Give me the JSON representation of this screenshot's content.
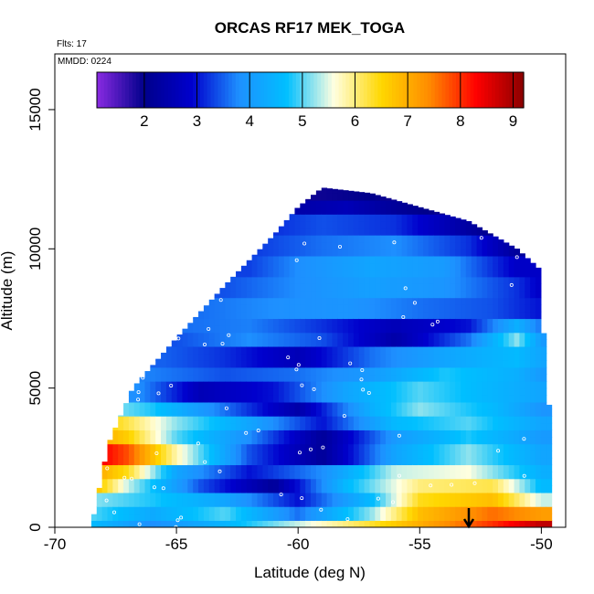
{
  "chart_data": {
    "type": "heatmap",
    "title": "ORCAS RF17 MEK_TOGA",
    "flights_label": "Flts: 17",
    "date_label": "MMDD: 0224",
    "xlabel": "Latitude (deg N)",
    "ylabel": "Altitude (m)",
    "xlim": [
      -70,
      -49
    ],
    "ylim": [
      0,
      17000
    ],
    "xticks": [
      -70,
      -65,
      -60,
      -55,
      -50
    ],
    "yticks": [
      0,
      5000,
      10000,
      15000
    ],
    "grid": false,
    "colorbar": {
      "placement": "top-inside",
      "range": [
        1.1,
        9.2
      ],
      "ticks": [
        2,
        3,
        4,
        5,
        6,
        7,
        8,
        9
      ],
      "stops": [
        "#8a2be2",
        "#00008b",
        "#0000cd",
        "#1e90ff",
        "#00bfff",
        "#ffffe0",
        "#ffd700",
        "#ff8c00",
        "#ff0000",
        "#8b0000"
      ]
    },
    "domain_envelope": {
      "latitude": [
        -68.5,
        -67.8,
        -66.8,
        -65.0,
        -63.0,
        -61.0,
        -60.0,
        -59.0,
        -57.0,
        -55.0,
        -53.0,
        -51.0,
        -50.1,
        -49.7
      ],
      "top_altitude": [
        0,
        3000,
        5000,
        6800,
        8700,
        10500,
        11500,
        12200,
        12000,
        11500,
        11000,
        10000,
        9300,
        4400
      ]
    },
    "bands": [
      {
        "alt": [
          0,
          300
        ],
        "stops": [
          [
            -68.5,
            4.6
          ],
          [
            -66,
            3.8
          ],
          [
            -63,
            4.5
          ],
          [
            -60,
            5.4
          ],
          [
            -57,
            6.3
          ],
          [
            -55,
            7.0
          ],
          [
            -52,
            8.0
          ],
          [
            -50,
            8.8
          ]
        ]
      },
      {
        "alt": [
          300,
          700
        ],
        "stops": [
          [
            -68.5,
            5.0
          ],
          [
            -66,
            4.3
          ],
          [
            -63,
            5.0
          ],
          [
            -60,
            3.6
          ],
          [
            -57,
            5.2
          ],
          [
            -55,
            6.8
          ],
          [
            -52,
            7.6
          ],
          [
            -50,
            7.2
          ]
        ]
      },
      {
        "alt": [
          700,
          1200
        ],
        "stops": [
          [
            -68.5,
            5.2
          ],
          [
            -66,
            4.8
          ],
          [
            -63,
            4.2
          ],
          [
            -60,
            3.0
          ],
          [
            -57,
            4.6
          ],
          [
            -55,
            6.4
          ],
          [
            -52,
            6.8
          ],
          [
            -50,
            5.4
          ]
        ]
      },
      {
        "alt": [
          1200,
          1700
        ],
        "stops": [
          [
            -68.5,
            7.0
          ],
          [
            -67,
            5.4
          ],
          [
            -64,
            3.4
          ],
          [
            -61,
            2.2
          ],
          [
            -58,
            4.6
          ],
          [
            -55,
            6.0
          ],
          [
            -52,
            6.2
          ],
          [
            -50,
            4.6
          ]
        ]
      },
      {
        "alt": [
          1700,
          2300
        ],
        "stops": [
          [
            -68.5,
            7.2
          ],
          [
            -67,
            6.4
          ],
          [
            -65,
            4.2
          ],
          [
            -62,
            3.0
          ],
          [
            -59,
            3.8
          ],
          [
            -56,
            5.4
          ],
          [
            -53,
            5.6
          ],
          [
            -50,
            4.4
          ]
        ]
      },
      {
        "alt": [
          2300,
          2900
        ],
        "stops": [
          [
            -68.5,
            8.6
          ],
          [
            -67,
            7.8
          ],
          [
            -65,
            5.8
          ],
          [
            -62,
            3.4
          ],
          [
            -59,
            2.2
          ],
          [
            -56,
            4.2
          ],
          [
            -53,
            5.2
          ],
          [
            -50,
            4.2
          ]
        ]
      },
      {
        "alt": [
          2900,
          3500
        ],
        "stops": [
          [
            -68.5,
            7.2
          ],
          [
            -67,
            6.6
          ],
          [
            -65,
            5.0
          ],
          [
            -62,
            3.8
          ],
          [
            -59,
            2.2
          ],
          [
            -56,
            4.0
          ],
          [
            -53,
            4.8
          ],
          [
            -50,
            4.0
          ]
        ]
      },
      {
        "alt": [
          3500,
          4100
        ],
        "stops": [
          [
            -68.5,
            6.8
          ],
          [
            -67,
            6.2
          ],
          [
            -65,
            5.2
          ],
          [
            -62,
            4.2
          ],
          [
            -59,
            3.0
          ],
          [
            -56,
            4.6
          ],
          [
            -53,
            5.0
          ],
          [
            -50,
            4.2
          ]
        ]
      },
      {
        "alt": [
          4100,
          4600
        ],
        "stops": [
          [
            -68.5,
            5.4
          ],
          [
            -66,
            4.8
          ],
          [
            -63,
            3.6
          ],
          [
            -60,
            2.4
          ],
          [
            -57,
            4.4
          ],
          [
            -55,
            5.2
          ],
          [
            -52,
            4.6
          ],
          [
            -50,
            3.9
          ]
        ]
      },
      {
        "alt": [
          4600,
          5200
        ],
        "stops": [
          [
            -66.5,
            3.8
          ],
          [
            -64,
            2.6
          ],
          [
            -61,
            3.0
          ],
          [
            -58,
            4.2
          ],
          [
            -55,
            5.0
          ],
          [
            -52,
            4.5
          ],
          [
            -50,
            4.2
          ]
        ]
      },
      {
        "alt": [
          5200,
          5800
        ],
        "stops": [
          [
            -66,
            3.7
          ],
          [
            -63,
            3.4
          ],
          [
            -60,
            3.6
          ],
          [
            -57,
            4.0
          ],
          [
            -54,
            4.8
          ],
          [
            -51,
            4.4
          ],
          [
            -50,
            4.0
          ]
        ]
      },
      {
        "alt": [
          5800,
          6400
        ],
        "stops": [
          [
            -65.5,
            3.5
          ],
          [
            -63,
            3.2
          ],
          [
            -60,
            2.6
          ],
          [
            -57,
            3.6
          ],
          [
            -54,
            4.2
          ],
          [
            -51,
            4.6
          ],
          [
            -50,
            4.2
          ]
        ]
      },
      {
        "alt": [
          6400,
          7000
        ],
        "stops": [
          [
            -65,
            3.4
          ],
          [
            -62,
            3.8
          ],
          [
            -59,
            3.4
          ],
          [
            -56,
            2.4
          ],
          [
            -53,
            3.6
          ],
          [
            -51,
            5.2
          ],
          [
            -50,
            4.0
          ]
        ]
      },
      {
        "alt": [
          7000,
          7600
        ],
        "stops": [
          [
            -64.5,
            3.6
          ],
          [
            -62,
            3.7
          ],
          [
            -59,
            3.2
          ],
          [
            -56,
            2.6
          ],
          [
            -53,
            3.0
          ],
          [
            -51,
            4.4
          ],
          [
            -50,
            3.6
          ]
        ]
      },
      {
        "alt": [
          7600,
          8300
        ],
        "stops": [
          [
            -64,
            3.6
          ],
          [
            -61,
            3.8
          ],
          [
            -58,
            3.9
          ],
          [
            -55,
            3.6
          ],
          [
            -52,
            3.4
          ],
          [
            -50,
            3.0
          ]
        ]
      },
      {
        "alt": [
          8300,
          9000
        ],
        "stops": [
          [
            -63,
            3.4
          ],
          [
            -60,
            3.8
          ],
          [
            -57,
            4.1
          ],
          [
            -54,
            3.9
          ],
          [
            -51,
            3.2
          ],
          [
            -50,
            2.8
          ]
        ]
      },
      {
        "alt": [
          9000,
          9800
        ],
        "stops": [
          [
            -62,
            3.3
          ],
          [
            -60,
            3.8
          ],
          [
            -57,
            4.2
          ],
          [
            -54,
            4.0
          ],
          [
            -51,
            2.8
          ]
        ]
      },
      {
        "alt": [
          9800,
          10500
        ],
        "stops": [
          [
            -61.5,
            3.3
          ],
          [
            -59,
            3.6
          ],
          [
            -56,
            3.8
          ],
          [
            -53,
            3.2
          ],
          [
            -51,
            2.2
          ]
        ]
      },
      {
        "alt": [
          10500,
          11200
        ],
        "stops": [
          [
            -61,
            3.2
          ],
          [
            -59,
            3.4
          ],
          [
            -56,
            3.2
          ],
          [
            -54,
            2.6
          ],
          [
            -52,
            2.0
          ]
        ]
      },
      {
        "alt": [
          11200,
          11800
        ],
        "stops": [
          [
            -60,
            2.4
          ],
          [
            -58,
            2.6
          ],
          [
            -56,
            2.2
          ],
          [
            -54,
            1.9
          ]
        ]
      },
      {
        "alt": [
          11800,
          12300
        ],
        "stops": [
          [
            -59.5,
            1.9
          ],
          [
            -57,
            2.0
          ],
          [
            -56,
            1.9
          ]
        ]
      }
    ]
  }
}
